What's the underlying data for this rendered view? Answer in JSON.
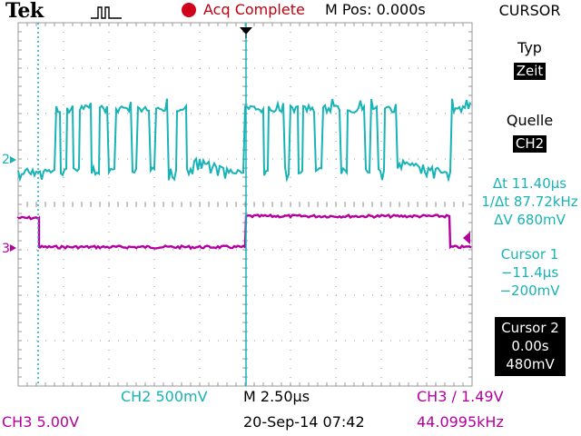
{
  "header": {
    "brand": "Tek",
    "acq_status": "Acq Complete",
    "mpos": "M Pos: 0.000s",
    "status_dot_color": "#d0021b"
  },
  "side_menu": {
    "title": "CURSOR",
    "typ_label": "Typ",
    "typ_value": "Zeit",
    "quelle_label": "Quelle",
    "quelle_value": "CH2",
    "delta_t": "Δt 11.40µs",
    "inv_delta_t": "1/Δt 87.72kHz",
    "delta_v": "ΔV 680mV",
    "cursor1_label": "Cursor 1",
    "cursor1_time": "−11.4µs",
    "cursor1_volt": "−200mV",
    "cursor2_label": "Cursor 2",
    "cursor2_time": "0.00s",
    "cursor2_volt": "480mV"
  },
  "bottom": {
    "ch2_scale": "CH2  500mV",
    "timebase": "M 2.50µs",
    "trigger": "CH3 ∕ 1.49V",
    "ch3_scale": "CH3  5.00V",
    "datetime": "20-Sep-14 07:42",
    "frequency": "44.0995kHz"
  },
  "markers": {
    "ch2": "2",
    "ch3": "3"
  },
  "colors": {
    "ch2": "#17b3b6",
    "ch3": "#b3009f",
    "grid": "#9a9a9a",
    "status_red": "#c0000f"
  }
}
